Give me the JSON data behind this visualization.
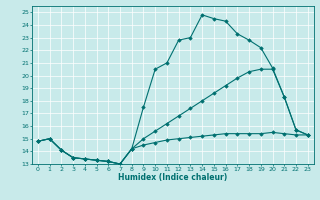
{
  "xlabel": "Humidex (Indice chaleur)",
  "bg_color": "#c8eaea",
  "grid_color": "#ffffff",
  "line_color": "#007070",
  "xlim": [
    -0.5,
    23.5
  ],
  "ylim": [
    13,
    25.5
  ],
  "yticks": [
    13,
    14,
    15,
    16,
    17,
    18,
    19,
    20,
    21,
    22,
    23,
    24,
    25
  ],
  "xticks": [
    0,
    1,
    2,
    3,
    4,
    5,
    6,
    7,
    8,
    9,
    10,
    11,
    12,
    13,
    14,
    15,
    16,
    17,
    18,
    19,
    20,
    21,
    22,
    23
  ],
  "series1_x": [
    0,
    1,
    2,
    3,
    4,
    5,
    6,
    7,
    8,
    9,
    10,
    11,
    12,
    13,
    14,
    15,
    16,
    17,
    18,
    19,
    20,
    21,
    22,
    23
  ],
  "series1_y": [
    14.8,
    15.0,
    14.1,
    13.5,
    13.4,
    13.3,
    13.2,
    13.0,
    14.2,
    17.5,
    20.5,
    21.0,
    22.8,
    23.0,
    24.8,
    24.5,
    24.3,
    23.3,
    22.8,
    22.2,
    20.6,
    18.3,
    15.7,
    15.3
  ],
  "series2_x": [
    0,
    1,
    2,
    3,
    4,
    5,
    6,
    7,
    8,
    9,
    10,
    11,
    12,
    13,
    14,
    15,
    16,
    17,
    18,
    19,
    20,
    21,
    22,
    23
  ],
  "series2_y": [
    14.8,
    15.0,
    14.1,
    13.5,
    13.4,
    13.3,
    13.2,
    13.0,
    14.2,
    15.0,
    15.6,
    16.2,
    16.8,
    17.4,
    18.0,
    18.6,
    19.2,
    19.8,
    20.3,
    20.5,
    20.5,
    18.3,
    15.7,
    15.3
  ],
  "series3_x": [
    0,
    1,
    2,
    3,
    4,
    5,
    6,
    7,
    8,
    9,
    10,
    11,
    12,
    13,
    14,
    15,
    16,
    17,
    18,
    19,
    20,
    21,
    22,
    23
  ],
  "series3_y": [
    14.8,
    15.0,
    14.1,
    13.5,
    13.4,
    13.3,
    13.2,
    13.0,
    14.2,
    14.5,
    14.7,
    14.9,
    15.0,
    15.1,
    15.2,
    15.3,
    15.4,
    15.4,
    15.4,
    15.4,
    15.5,
    15.4,
    15.3,
    15.3
  ]
}
